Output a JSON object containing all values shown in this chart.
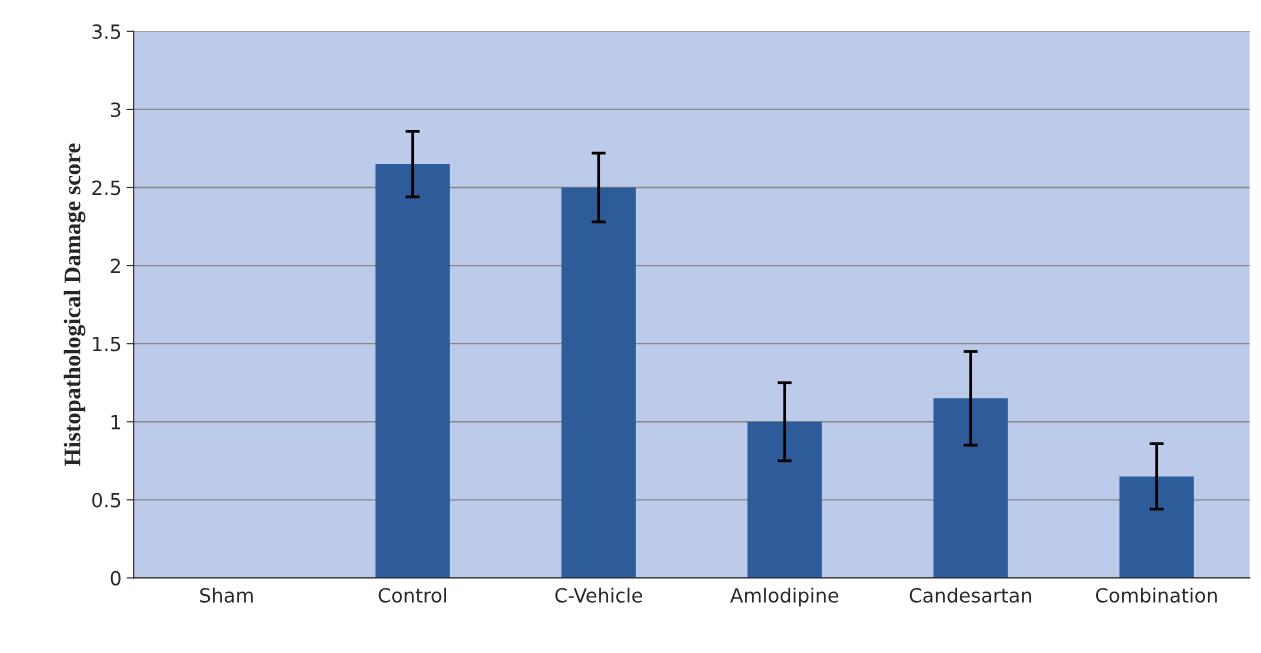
{
  "chart_data": {
    "type": "bar",
    "ylabel": "Histopathological Damage score",
    "categories": [
      "Sham",
      "Control",
      "C-Vehicle",
      "Amlodipine",
      "Candesartan",
      "Combination"
    ],
    "values": [
      0,
      2.65,
      2.5,
      1.0,
      1.15,
      0.65
    ],
    "errors": [
      null,
      0.21,
      0.22,
      0.25,
      0.3,
      0.21
    ],
    "color": "#2e5c9a",
    "ylim": [
      0,
      3.5
    ],
    "yticks": [
      0,
      0.5,
      1,
      1.5,
      2,
      2.5,
      3,
      3.5
    ],
    "grid": "y",
    "legend": false
  }
}
